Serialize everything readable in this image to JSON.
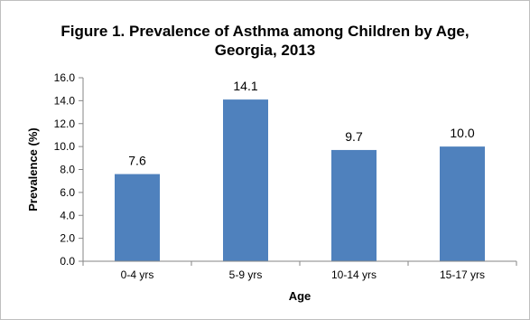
{
  "chart_data": {
    "type": "bar",
    "title": [
      "Figure 1. Prevalence of Asthma among Children by Age,",
      "Georgia, 2013"
    ],
    "xlabel": "Age",
    "ylabel": "Prevalence (%)",
    "categories": [
      "0-4 yrs",
      "5-9 yrs",
      "10-14 yrs",
      "15-17 yrs"
    ],
    "values": [
      7.6,
      14.1,
      9.7,
      10.0
    ],
    "value_labels": [
      "7.6",
      "14.1",
      "9.7",
      "10.0"
    ],
    "ylim": [
      0,
      16
    ],
    "yticks": [
      "0.0",
      "2.0",
      "4.0",
      "6.0",
      "8.0",
      "10.0",
      "12.0",
      "14.0",
      "16.0"
    ],
    "grid": false,
    "legend": "none",
    "bar_color": "#4F81BD"
  }
}
